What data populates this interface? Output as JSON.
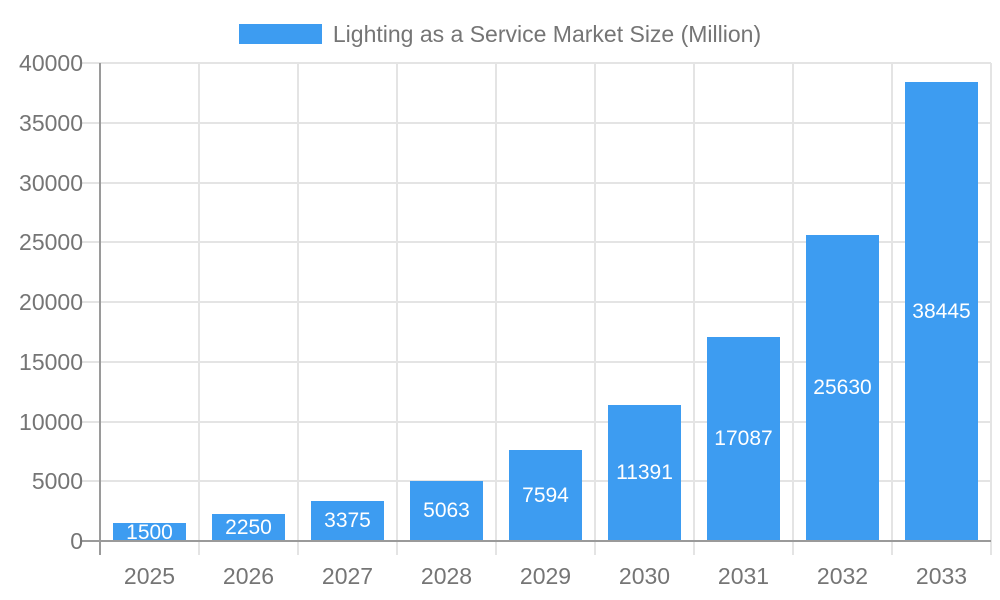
{
  "legend": {
    "label": "Lighting as a Service Market Size (Million)"
  },
  "colors": {
    "bar": "#3D9CF1",
    "axis_line": "#9A9A9A",
    "grid_line": "#E4E4E4",
    "axis_text": "#757575",
    "bar_label": "#FFFFFF",
    "background": "#FFFFFF"
  },
  "chart_data": {
    "type": "bar",
    "title": "Lighting as a Service Market Size (Million)",
    "series_name": "Lighting as a Service Market Size (Million)",
    "categories": [
      "2025",
      "2026",
      "2027",
      "2028",
      "2029",
      "2030",
      "2031",
      "2032",
      "2033"
    ],
    "values": [
      1500,
      2250,
      3375,
      5063,
      7594,
      11391,
      17087,
      25630,
      38445
    ],
    "xlabel": "",
    "ylabel": "",
    "ylim": [
      0,
      40000
    ],
    "yticks": [
      0,
      5000,
      10000,
      15000,
      20000,
      25000,
      30000,
      35000,
      40000
    ],
    "grid": true,
    "legend_position": "top-center",
    "bar_label_position": "inside-center"
  }
}
